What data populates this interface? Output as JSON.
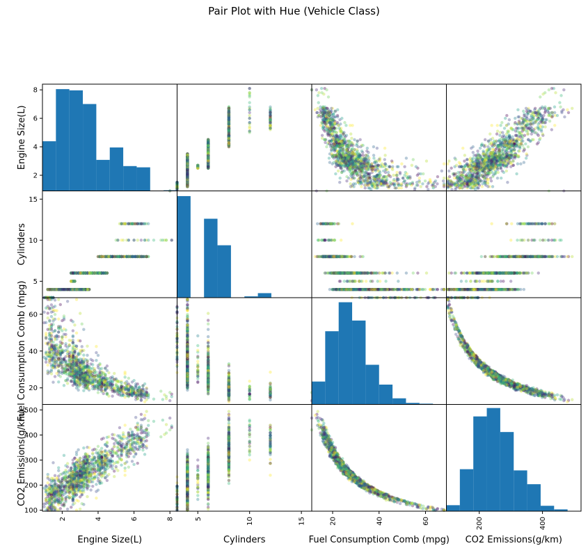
{
  "chart_data": {
    "type": "scatter_matrix",
    "title": "Pair Plot with Hue (Vehicle Class)",
    "variables": [
      {
        "key": "engine",
        "label": "Engine Size(L)",
        "range": [
          0.9,
          8.4
        ],
        "xticks": [
          2,
          4,
          6,
          8
        ],
        "yticks": [
          2,
          4,
          6,
          8
        ]
      },
      {
        "key": "cyl",
        "label": "Cylinders",
        "range": [
          3,
          16
        ],
        "xticks": [
          5,
          10,
          15
        ],
        "yticks": [
          5,
          10,
          15
        ]
      },
      {
        "key": "fuel",
        "label": "Fuel Consumption Comb (mpg)",
        "range": [
          11,
          69
        ],
        "xticks": [
          20,
          40,
          60
        ],
        "yticks": [
          20,
          40,
          60
        ]
      },
      {
        "key": "co2",
        "label": "CO2 Emissions(g/km)",
        "range": [
          96,
          522
        ],
        "xticks": [
          200,
          400
        ],
        "yticks": [
          100,
          200,
          300,
          400,
          500
        ]
      }
    ],
    "histograms": [
      {
        "variable": "engine",
        "bins": 10,
        "edges": [
          0.9,
          1.65,
          2.4,
          3.15,
          3.9,
          4.65,
          5.4,
          6.15,
          6.9,
          7.65,
          8.4
        ],
        "counts": [
          4,
          8.2,
          8.1,
          7,
          2.5,
          3.5,
          2,
          1.9,
          0,
          0.05
        ],
        "ymax": 8.6
      },
      {
        "variable": "cyl",
        "bins": 10,
        "edges": [
          3,
          4.3,
          5.6,
          6.9,
          8.2,
          9.5,
          10.8,
          12.1,
          13.4,
          14.7,
          16
        ],
        "counts": [
          15.7,
          0.05,
          12.2,
          8.1,
          0,
          0.2,
          0.7,
          0,
          0,
          0
        ],
        "ymax": 16.5
      },
      {
        "variable": "fuel",
        "bins": 10,
        "edges": [
          11,
          16.8,
          22.6,
          28.4,
          34.2,
          40,
          45.8,
          51.6,
          57.4,
          63.2,
          69
        ],
        "counts": [
          15,
          48,
          67,
          55,
          26,
          13,
          4,
          1,
          0.5,
          0
        ],
        "ymax": 70
      },
      {
        "variable": "co2",
        "bins": 10,
        "edges": [
          96,
          138.6,
          181.2,
          223.8,
          266.4,
          309,
          351.6,
          394.2,
          436.8,
          479.4,
          522
        ],
        "counts": [
          10,
          70,
          158,
          172,
          132,
          68,
          45,
          9,
          3,
          0
        ],
        "ymax": 178
      }
    ],
    "hue": "Vehicle Class",
    "hue_colors": [
      "#440154",
      "#482878",
      "#3e4989",
      "#31688e",
      "#26828e",
      "#1f9e89",
      "#35b779",
      "#6ece58",
      "#b5de2b",
      "#fde725"
    ],
    "histogram_color": "#1f77b4",
    "point_alpha": 0.35,
    "n_points": 1400
  }
}
